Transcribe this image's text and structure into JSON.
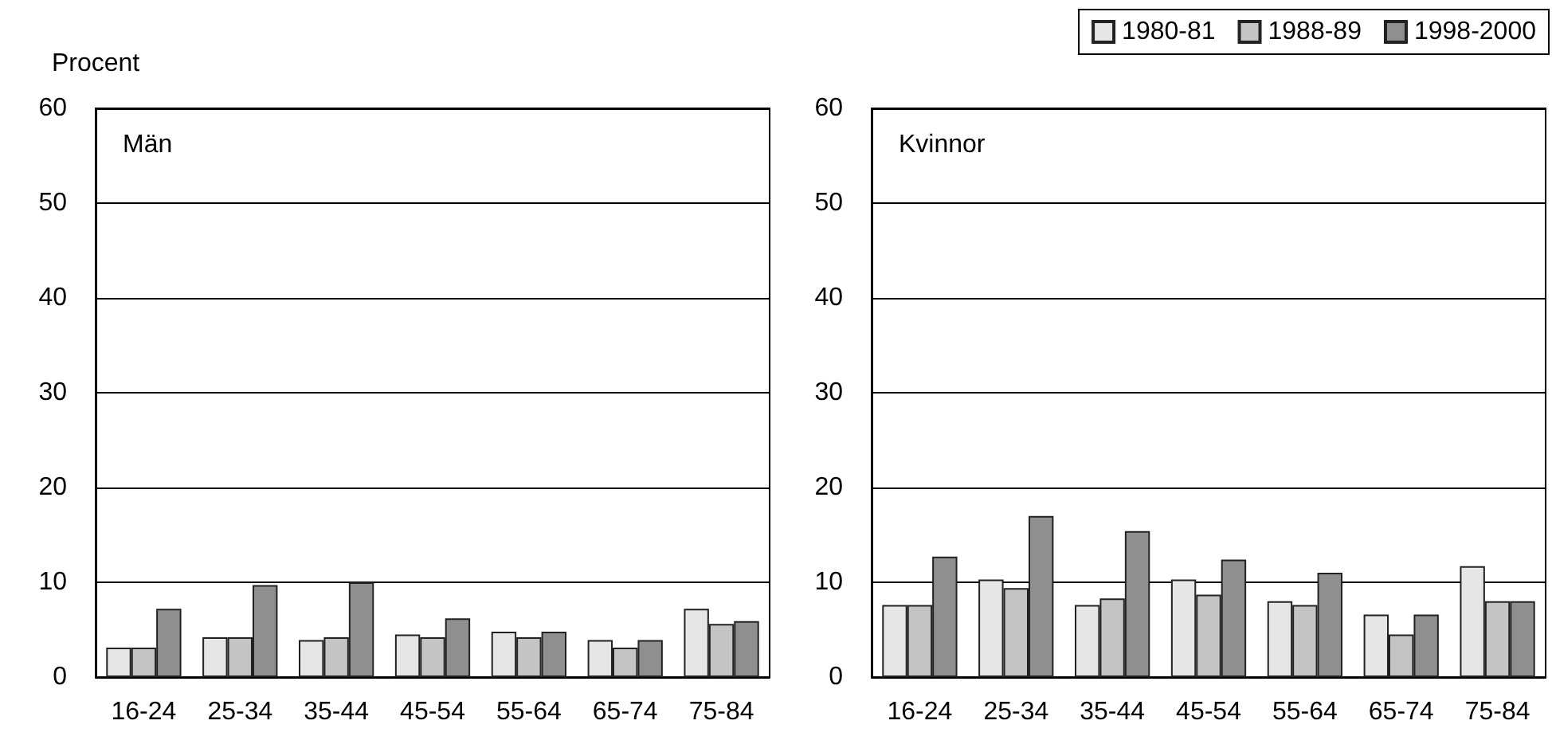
{
  "chart_data": [
    {
      "type": "bar",
      "title": "Män",
      "ylabel": "Procent",
      "categories": [
        "16-24",
        "25-34",
        "35-44",
        "45-54",
        "55-64",
        "65-74",
        "75-84"
      ],
      "series": [
        {
          "color": "#e6e6e6",
          "values": [
            3.1,
            4.2,
            3.9,
            4.5,
            4.8,
            3.9,
            7.2
          ]
        },
        {
          "color": "#c4c4c4",
          "values": [
            3.1,
            4.2,
            4.2,
            4.2,
            4.2,
            3.1,
            5.6
          ]
        },
        {
          "color": "#8f8f8f",
          "values": [
            7.2,
            9.7,
            10,
            6.2,
            4.8,
            3.9,
            5.9
          ]
        }
      ],
      "ylim": [
        0,
        60
      ],
      "yticks": [
        0,
        10,
        20,
        30,
        40,
        50,
        60
      ],
      "grid": "y",
      "legend": false
    },
    {
      "type": "bar",
      "title": "Kvinnor",
      "categories": [
        "16-24",
        "25-34",
        "35-44",
        "45-54",
        "55-64",
        "65-74",
        "75-84"
      ],
      "series": [
        {
          "name": "1980-81",
          "color": "#e6e6e6",
          "values": [
            7.6,
            10.3,
            7.6,
            10.3,
            8,
            6.6,
            11.7
          ]
        },
        {
          "name": "1988-89",
          "color": "#c4c4c4",
          "values": [
            7.6,
            9.4,
            8.3,
            8.7,
            7.6,
            4.5,
            8
          ]
        },
        {
          "name": "1998-2000",
          "color": "#8f8f8f",
          "values": [
            12.7,
            17,
            15.4,
            12.4,
            11,
            6.6,
            8
          ]
        }
      ],
      "ylim": [
        0,
        60
      ],
      "yticks": [
        0,
        10,
        20,
        30,
        40,
        50,
        60
      ],
      "grid": "y",
      "legend": "top right"
    }
  ]
}
